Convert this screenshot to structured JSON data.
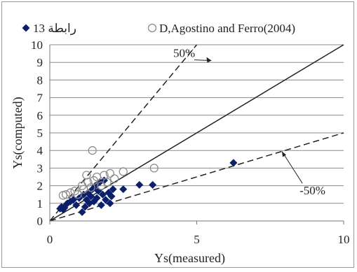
{
  "chart_data": {
    "type": "scatter",
    "xlabel": "Ys(measured)",
    "ylabel": "Ys(computed)",
    "xlim": [
      0,
      10
    ],
    "ylim": [
      0,
      10
    ],
    "x_ticks": [
      "0",
      "5",
      "10"
    ],
    "y_ticks": [
      "0",
      "1",
      "2",
      "3",
      "4",
      "5",
      "6",
      "7",
      "8",
      "9",
      "10"
    ],
    "grid": "horizontal",
    "legend_position": "top",
    "reference_lines": [
      {
        "name": "50%",
        "slope": 2,
        "style": "dashed"
      },
      {
        "name": "",
        "slope": 1,
        "style": "solid"
      },
      {
        "name": "-50%",
        "slope": 0.5,
        "style": "dashed"
      }
    ],
    "series": [
      {
        "name": "رابطة 13",
        "marker": "filled-diamond",
        "color": "#0b1f6b",
        "points": [
          [
            0.35,
            0.7
          ],
          [
            0.4,
            0.8
          ],
          [
            0.45,
            0.65
          ],
          [
            0.5,
            0.75
          ],
          [
            0.6,
            1.0
          ],
          [
            0.7,
            1.1
          ],
          [
            0.8,
            1.2
          ],
          [
            0.9,
            0.9
          ],
          [
            1.0,
            1.3
          ],
          [
            1.1,
            0.5
          ],
          [
            1.15,
            1.5
          ],
          [
            1.2,
            0.8
          ],
          [
            1.25,
            1.2
          ],
          [
            1.3,
            1.6
          ],
          [
            1.35,
            1.0
          ],
          [
            1.4,
            1.4
          ],
          [
            1.45,
            1.8
          ],
          [
            1.5,
            1.1
          ],
          [
            1.55,
            2.0
          ],
          [
            1.6,
            1.3
          ],
          [
            1.65,
            1.7
          ],
          [
            1.7,
            2.2
          ],
          [
            1.75,
            0.9
          ],
          [
            1.8,
            1.5
          ],
          [
            1.85,
            2.3
          ],
          [
            1.9,
            1.2
          ],
          [
            2.0,
            1.6
          ],
          [
            2.05,
            1.0
          ],
          [
            2.1,
            1.4
          ],
          [
            2.15,
            1.8
          ],
          [
            2.5,
            1.8
          ],
          [
            3.05,
            2.05
          ],
          [
            3.5,
            2.05
          ],
          [
            6.25,
            3.3
          ]
        ]
      },
      {
        "name": "D,Agostino and Ferro(2004)",
        "marker": "open-circle",
        "color": "#8c8c8c",
        "points": [
          [
            0.45,
            1.45
          ],
          [
            0.55,
            1.5
          ],
          [
            0.7,
            1.6
          ],
          [
            0.85,
            1.7
          ],
          [
            0.95,
            1.5
          ],
          [
            1.1,
            2.0
          ],
          [
            1.15,
            1.8
          ],
          [
            1.25,
            2.6
          ],
          [
            1.3,
            2.2
          ],
          [
            1.4,
            1.9
          ],
          [
            1.45,
            4.0
          ],
          [
            1.5,
            2.3
          ],
          [
            1.6,
            2.5
          ],
          [
            1.75,
            2.0
          ],
          [
            1.85,
            2.6
          ],
          [
            1.95,
            2.2
          ],
          [
            2.05,
            2.7
          ],
          [
            2.2,
            2.4
          ],
          [
            2.5,
            2.8
          ],
          [
            3.55,
            3.0
          ]
        ]
      }
    ],
    "annotations": [
      {
        "text": "50%",
        "x": 4.2,
        "y": 9.3
      },
      {
        "text": "-50%",
        "x": 8.5,
        "y": 1.5
      }
    ]
  }
}
